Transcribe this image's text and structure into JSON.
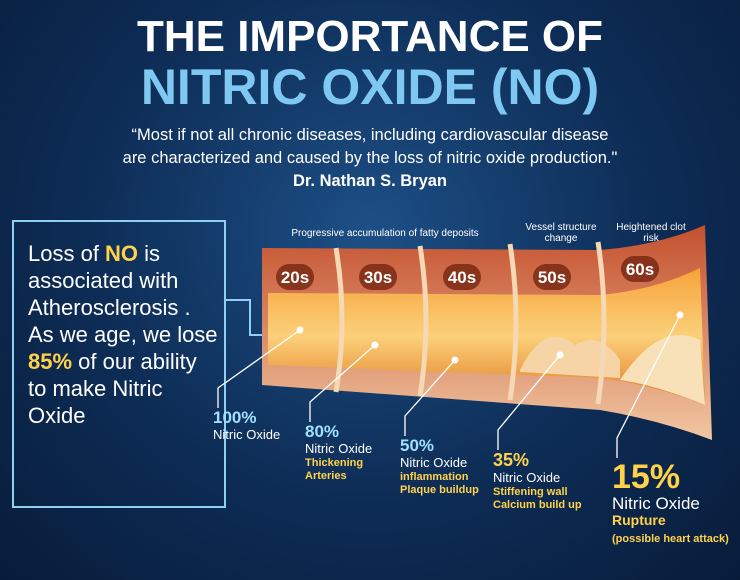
{
  "header": {
    "title_line1": "THE IMPORTANCE OF",
    "title_line2": "NITRIC OXIDE (NO)"
  },
  "quote": {
    "lines": [
      "“Most if not all chronic diseases, including cardiovascular disease",
      "are characterized and caused by the loss of nitric oxide production.\""
    ],
    "author": "Dr. Nathan S. Bryan"
  },
  "sidebar": {
    "parts": [
      "Loss of ",
      "NO",
      " is associated with Atherosclerosis ."
    ],
    "parts2": [
      "As we age, we lose ",
      "85%",
      " of our ability to make Nitric Oxide"
    ]
  },
  "stage_headers": [
    "Progressive accumulation of fatty deposits",
    "Vessel structure change",
    "Heightened clot risk"
  ],
  "stages": [
    {
      "age": "20s",
      "percent": "100%",
      "label": "Nitric Oxide",
      "notes": []
    },
    {
      "age": "30s",
      "percent": "80%",
      "label": "Nitric Oxide",
      "notes": [
        "Thickening",
        "Arteries"
      ]
    },
    {
      "age": "40s",
      "percent": "50%",
      "label": "Nitric Oxide",
      "notes": [
        "inflammation",
        "Plaque buildup"
      ]
    },
    {
      "age": "50s",
      "percent": "35%",
      "label": "Nitric Oxide",
      "notes": [
        "Stiffening wall",
        "Calcium build up"
      ]
    },
    {
      "age": "60s",
      "percent": "15%",
      "label": "Nitric Oxide",
      "notes": [
        "Rupture",
        "(possible heart attack)"
      ]
    }
  ]
}
